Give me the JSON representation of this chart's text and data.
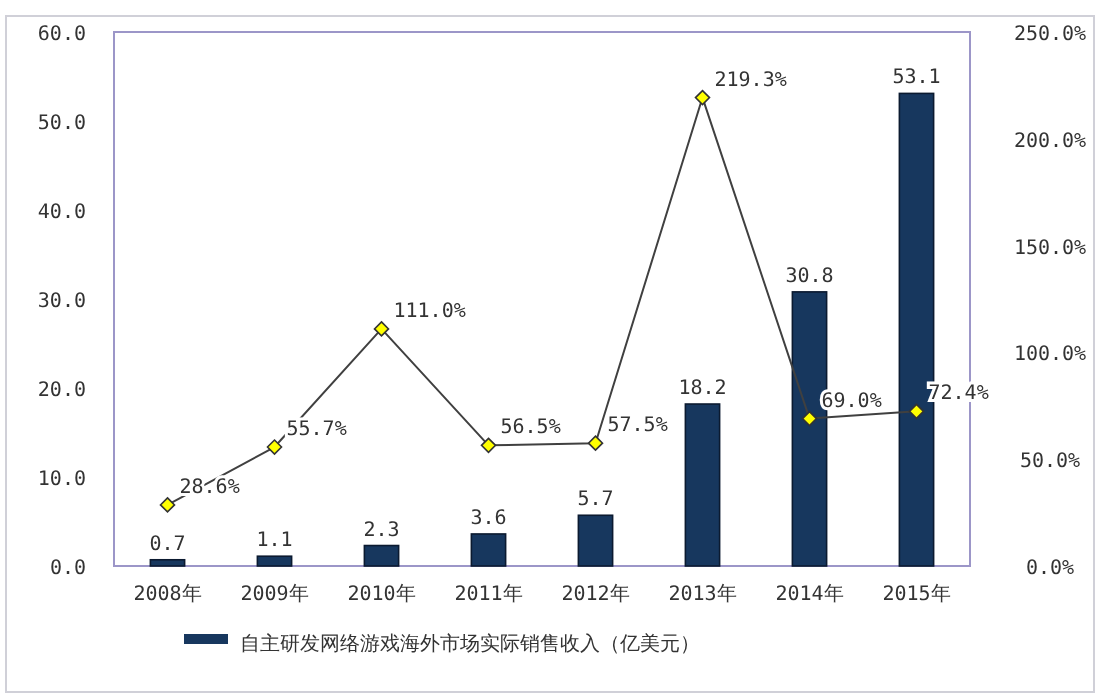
{
  "chart_data": {
    "type": "bar",
    "categories": [
      "2008年",
      "2009年",
      "2010年",
      "2011年",
      "2012年",
      "2013年",
      "2014年",
      "2015年"
    ],
    "series": [
      {
        "name": "自主研发网络游戏海外市场实际销售收入（亿美元）",
        "color": "#17375e",
        "values": [
          0.7,
          1.1,
          2.3,
          3.6,
          5.7,
          18.2,
          30.8,
          53.1
        ],
        "value_labels": [
          "0.7",
          "1.1",
          "2.3",
          "3.6",
          "5.7",
          "18.2",
          "30.8",
          "53.1"
        ]
      },
      {
        "type": "line",
        "axis": "y2",
        "color": "#404040",
        "marker": "diamond",
        "values": [
          28.6,
          55.7,
          111.0,
          56.5,
          57.5,
          219.3,
          69.0,
          72.4
        ],
        "value_labels": [
          "28.6%",
          "55.7%",
          "111.0%",
          "56.5%",
          "57.5%",
          "219.3%",
          "69.0%",
          "72.4%"
        ]
      }
    ],
    "ylim": [
      0,
      60
    ],
    "yticks": [
      {
        "value": 0,
        "label": "0.0"
      },
      {
        "value": 10,
        "label": "10.0"
      },
      {
        "value": 20,
        "label": "20.0"
      },
      {
        "value": 30,
        "label": "30.0"
      },
      {
        "value": 40,
        "label": "40.0"
      },
      {
        "value": 50,
        "label": "50.0"
      },
      {
        "value": 60,
        "label": "60.0"
      }
    ],
    "y2lim": [
      0,
      250
    ],
    "y2ticks": [
      {
        "value": 0,
        "label": "0.0%"
      },
      {
        "value": 50,
        "label": "50.0%"
      },
      {
        "value": 100,
        "label": "100.0%"
      },
      {
        "value": 150,
        "label": "150.0%"
      },
      {
        "value": 200,
        "label": "200.0%"
      },
      {
        "value": 250,
        "label": "250.0%"
      }
    ],
    "legend": "bottom",
    "grid": false
  }
}
